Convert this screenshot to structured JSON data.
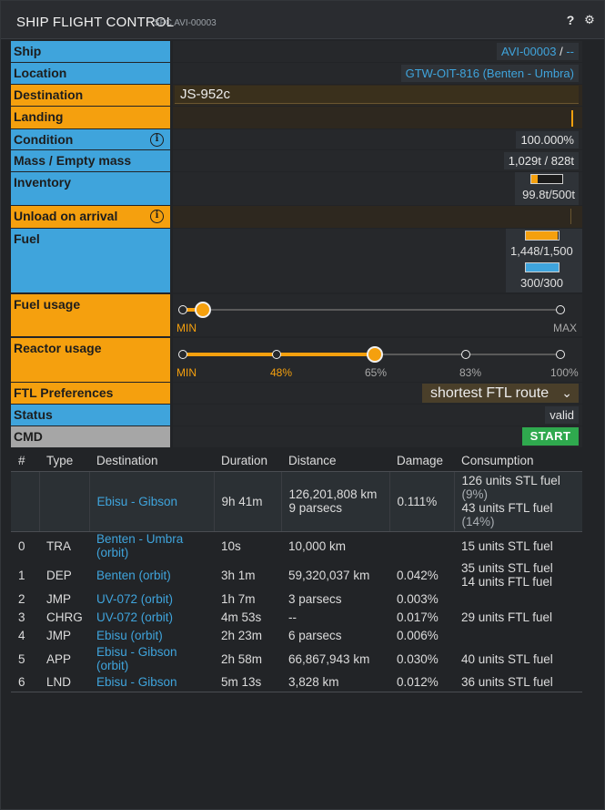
{
  "window": {
    "title": "SHIP FLIGHT CONTROL",
    "subtitle": "SFC AVI-00003",
    "help_icon": "question-icon",
    "settings_icon": "gear-icon"
  },
  "fields": {
    "ship": {
      "label": "Ship",
      "value": "AVI-00003",
      "sep": "/",
      "extra": "--"
    },
    "location": {
      "label": "Location",
      "value": "GTW-OIT-816 (Benten - Umbra)"
    },
    "destination": {
      "label": "Destination",
      "value": "JS-952c"
    },
    "landing": {
      "label": "Landing"
    },
    "condition": {
      "label": "Condition",
      "value": "100.000%"
    },
    "mass": {
      "label": "Mass / Empty mass",
      "value": "1,029t / 828t"
    },
    "inventory": {
      "label": "Inventory",
      "value": "99.8t/500t",
      "fraction": 0.1996
    },
    "unload": {
      "label": "Unload on arrival"
    },
    "fuel": {
      "label": "Fuel",
      "stl_value": "1,448/1,500",
      "stl_fraction": 0.965,
      "ftl_value": "300/300",
      "ftl_fraction": 1.0
    },
    "fuel_usage": {
      "label": "Fuel usage",
      "min": "MIN",
      "max": "MAX",
      "level": 0.05
    },
    "reactor_usage": {
      "label": "Reactor usage",
      "ticks": [
        "MIN",
        "48%",
        "65%",
        "83%",
        "100%"
      ],
      "level": 0.65
    },
    "ftl_prefs": {
      "label": "FTL Preferences",
      "selected": "shortest FTL route"
    },
    "status": {
      "label": "Status",
      "value": "valid"
    },
    "cmd": {
      "label": "CMD",
      "button": "START"
    }
  },
  "colors": {
    "blue": "#3fa4dc",
    "orange": "#f5a00e",
    "gray": "#a6a6a6",
    "green": "#2fa94e"
  },
  "route": {
    "headers": [
      "#",
      "Type",
      "Destination",
      "Duration",
      "Distance",
      "Damage",
      "Consumption"
    ],
    "total": {
      "destination": "Ebisu - Gibson",
      "duration": "9h 41m",
      "distance_1": "126,201,808 km",
      "distance_2": "9 parsecs",
      "damage": "0.111%",
      "cons_1": "126 units STL fuel",
      "cons_1b": "(9%)",
      "cons_2": "43 units FTL fuel",
      "cons_2b": "(14%)"
    },
    "legs": [
      {
        "n": "0",
        "type": "TRA",
        "dest_1": "Benten - Umbra",
        "dest_2": "(orbit)",
        "duration": "10s",
        "distance": "10,000 km",
        "damage": "",
        "cons_1": "15 units STL fuel",
        "cons_2": ""
      },
      {
        "n": "1",
        "type": "DEP",
        "dest_1": "Benten (orbit)",
        "dest_2": "",
        "duration": "3h 1m",
        "distance": "59,320,037 km",
        "damage": "0.042%",
        "cons_1": "35 units STL fuel",
        "cons_2": "14 units FTL fuel"
      },
      {
        "n": "2",
        "type": "JMP",
        "dest_1": "UV-072 (orbit)",
        "dest_2": "",
        "duration": "1h 7m",
        "distance": "3 parsecs",
        "damage": "0.003%",
        "cons_1": "",
        "cons_2": ""
      },
      {
        "n": "3",
        "type": "CHRG",
        "dest_1": "UV-072 (orbit)",
        "dest_2": "",
        "duration": "4m 53s",
        "distance": "--",
        "damage": "0.017%",
        "cons_1": "29 units FTL fuel",
        "cons_2": ""
      },
      {
        "n": "4",
        "type": "JMP",
        "dest_1": "Ebisu (orbit)",
        "dest_2": "",
        "duration": "2h 23m",
        "distance": "6 parsecs",
        "damage": "0.006%",
        "cons_1": "",
        "cons_2": ""
      },
      {
        "n": "5",
        "type": "APP",
        "dest_1": "Ebisu - Gibson",
        "dest_2": "(orbit)",
        "duration": "2h 58m",
        "distance": "66,867,943 km",
        "damage": "0.030%",
        "cons_1": "40 units STL fuel",
        "cons_2": ""
      },
      {
        "n": "6",
        "type": "LND",
        "dest_1": "Ebisu - Gibson",
        "dest_2": "",
        "duration": "5m 13s",
        "distance": "3,828 km",
        "damage": "0.012%",
        "cons_1": "36 units STL fuel",
        "cons_2": ""
      }
    ]
  }
}
